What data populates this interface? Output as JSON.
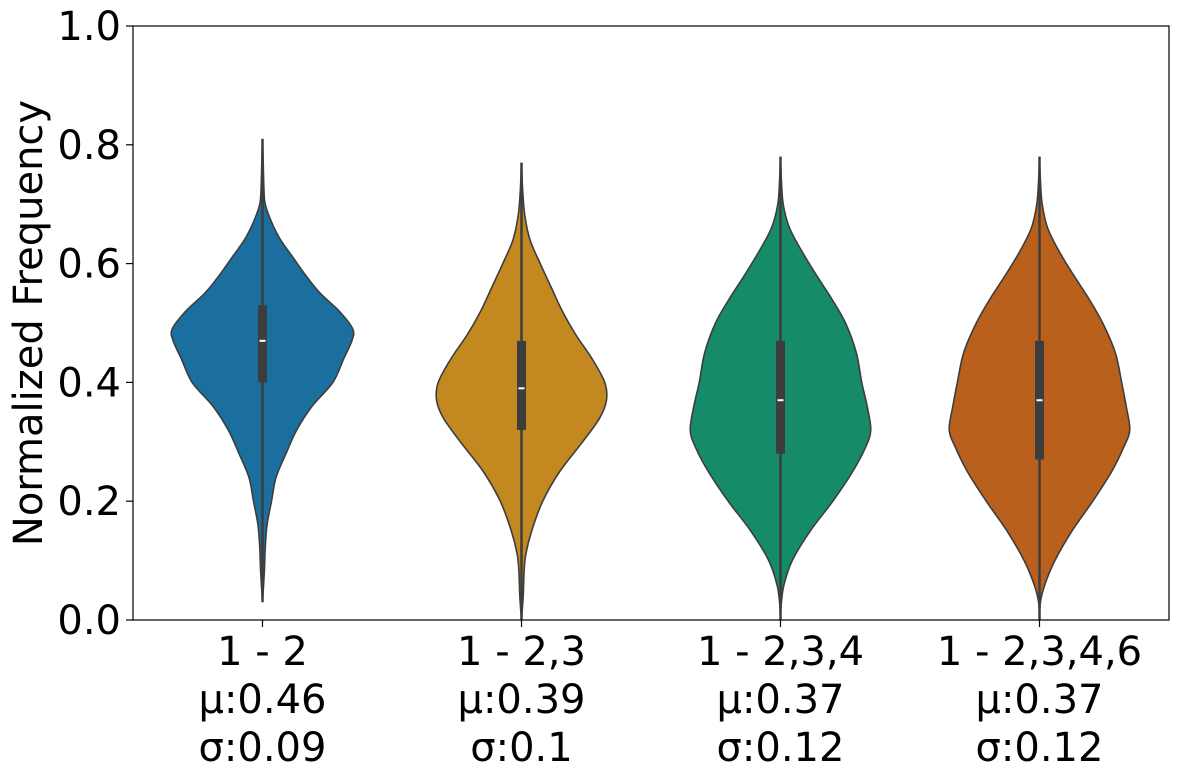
{
  "chart_data": {
    "type": "violin",
    "title": "",
    "xlabel": "",
    "ylabel": "Normalized Frequency",
    "ylim": [
      0.0,
      1.0
    ],
    "yticks": [
      "0.0",
      "0.2",
      "0.4",
      "0.6",
      "0.8",
      "1.0"
    ],
    "grid": false,
    "categories": [
      {
        "label": "1 - 2",
        "mu_label": "μ:0.46",
        "sigma_label": "σ:0.09",
        "color": "#1a6f9f",
        "whisker": [
          0.03,
          0.81
        ],
        "box": [
          0.4,
          0.53
        ],
        "median": 0.47,
        "width": 0.85,
        "profile": [
          [
            0.03,
            0.0
          ],
          [
            0.08,
            0.02
          ],
          [
            0.12,
            0.03
          ],
          [
            0.16,
            0.05
          ],
          [
            0.2,
            0.1
          ],
          [
            0.24,
            0.15
          ],
          [
            0.28,
            0.26
          ],
          [
            0.32,
            0.38
          ],
          [
            0.36,
            0.55
          ],
          [
            0.4,
            0.78
          ],
          [
            0.44,
            0.9
          ],
          [
            0.47,
            0.99
          ],
          [
            0.49,
            1.0
          ],
          [
            0.52,
            0.85
          ],
          [
            0.55,
            0.64
          ],
          [
            0.58,
            0.48
          ],
          [
            0.61,
            0.34
          ],
          [
            0.64,
            0.2
          ],
          [
            0.67,
            0.1
          ],
          [
            0.7,
            0.03
          ],
          [
            0.73,
            0.015
          ],
          [
            0.77,
            0.008
          ],
          [
            0.81,
            0.0
          ]
        ]
      },
      {
        "label": "1 - 2,3",
        "mu_label": "μ:0.39",
        "sigma_label": "σ:0.1",
        "color": "#c38820",
        "whisker": [
          0.0,
          0.77
        ],
        "box": [
          0.32,
          0.47
        ],
        "median": 0.39,
        "width": 0.8,
        "profile": [
          [
            0.0,
            0.0
          ],
          [
            0.04,
            0.02
          ],
          [
            0.08,
            0.03
          ],
          [
            0.11,
            0.05
          ],
          [
            0.15,
            0.12
          ],
          [
            0.2,
            0.25
          ],
          [
            0.25,
            0.45
          ],
          [
            0.3,
            0.72
          ],
          [
            0.34,
            0.92
          ],
          [
            0.37,
            1.0
          ],
          [
            0.4,
            0.98
          ],
          [
            0.44,
            0.83
          ],
          [
            0.48,
            0.64
          ],
          [
            0.52,
            0.48
          ],
          [
            0.56,
            0.35
          ],
          [
            0.6,
            0.22
          ],
          [
            0.64,
            0.1
          ],
          [
            0.68,
            0.04
          ],
          [
            0.72,
            0.015
          ],
          [
            0.77,
            0.0
          ]
        ]
      },
      {
        "label": "1 - 2,3,4",
        "mu_label": "μ:0.37",
        "sigma_label": "σ:0.12",
        "color": "#168b69",
        "whisker": [
          0.0,
          0.78
        ],
        "box": [
          0.28,
          0.47
        ],
        "median": 0.37,
        "width": 0.85,
        "profile": [
          [
            0.0,
            0.0
          ],
          [
            0.03,
            0.01
          ],
          [
            0.06,
            0.04
          ],
          [
            0.1,
            0.13
          ],
          [
            0.15,
            0.33
          ],
          [
            0.2,
            0.58
          ],
          [
            0.25,
            0.8
          ],
          [
            0.29,
            0.94
          ],
          [
            0.32,
            1.0
          ],
          [
            0.36,
            0.96
          ],
          [
            0.4,
            0.9
          ],
          [
            0.45,
            0.84
          ],
          [
            0.5,
            0.72
          ],
          [
            0.54,
            0.57
          ],
          [
            0.58,
            0.4
          ],
          [
            0.62,
            0.24
          ],
          [
            0.66,
            0.1
          ],
          [
            0.7,
            0.03
          ],
          [
            0.74,
            0.01
          ],
          [
            0.78,
            0.0
          ]
        ]
      },
      {
        "label": "1 - 2,3,4,6",
        "mu_label": "μ:0.37",
        "sigma_label": "σ:0.12",
        "color": "#b8601c",
        "whisker": [
          0.0,
          0.78
        ],
        "box": [
          0.27,
          0.47
        ],
        "median": 0.37,
        "width": 0.85,
        "profile": [
          [
            0.0,
            0.0
          ],
          [
            0.03,
            0.01
          ],
          [
            0.06,
            0.06
          ],
          [
            0.1,
            0.17
          ],
          [
            0.15,
            0.36
          ],
          [
            0.2,
            0.59
          ],
          [
            0.25,
            0.8
          ],
          [
            0.29,
            0.93
          ],
          [
            0.32,
            1.0
          ],
          [
            0.36,
            0.96
          ],
          [
            0.4,
            0.91
          ],
          [
            0.45,
            0.84
          ],
          [
            0.5,
            0.7
          ],
          [
            0.54,
            0.55
          ],
          [
            0.58,
            0.38
          ],
          [
            0.62,
            0.22
          ],
          [
            0.66,
            0.09
          ],
          [
            0.7,
            0.03
          ],
          [
            0.74,
            0.01
          ],
          [
            0.78,
            0.0
          ]
        ]
      }
    ]
  }
}
